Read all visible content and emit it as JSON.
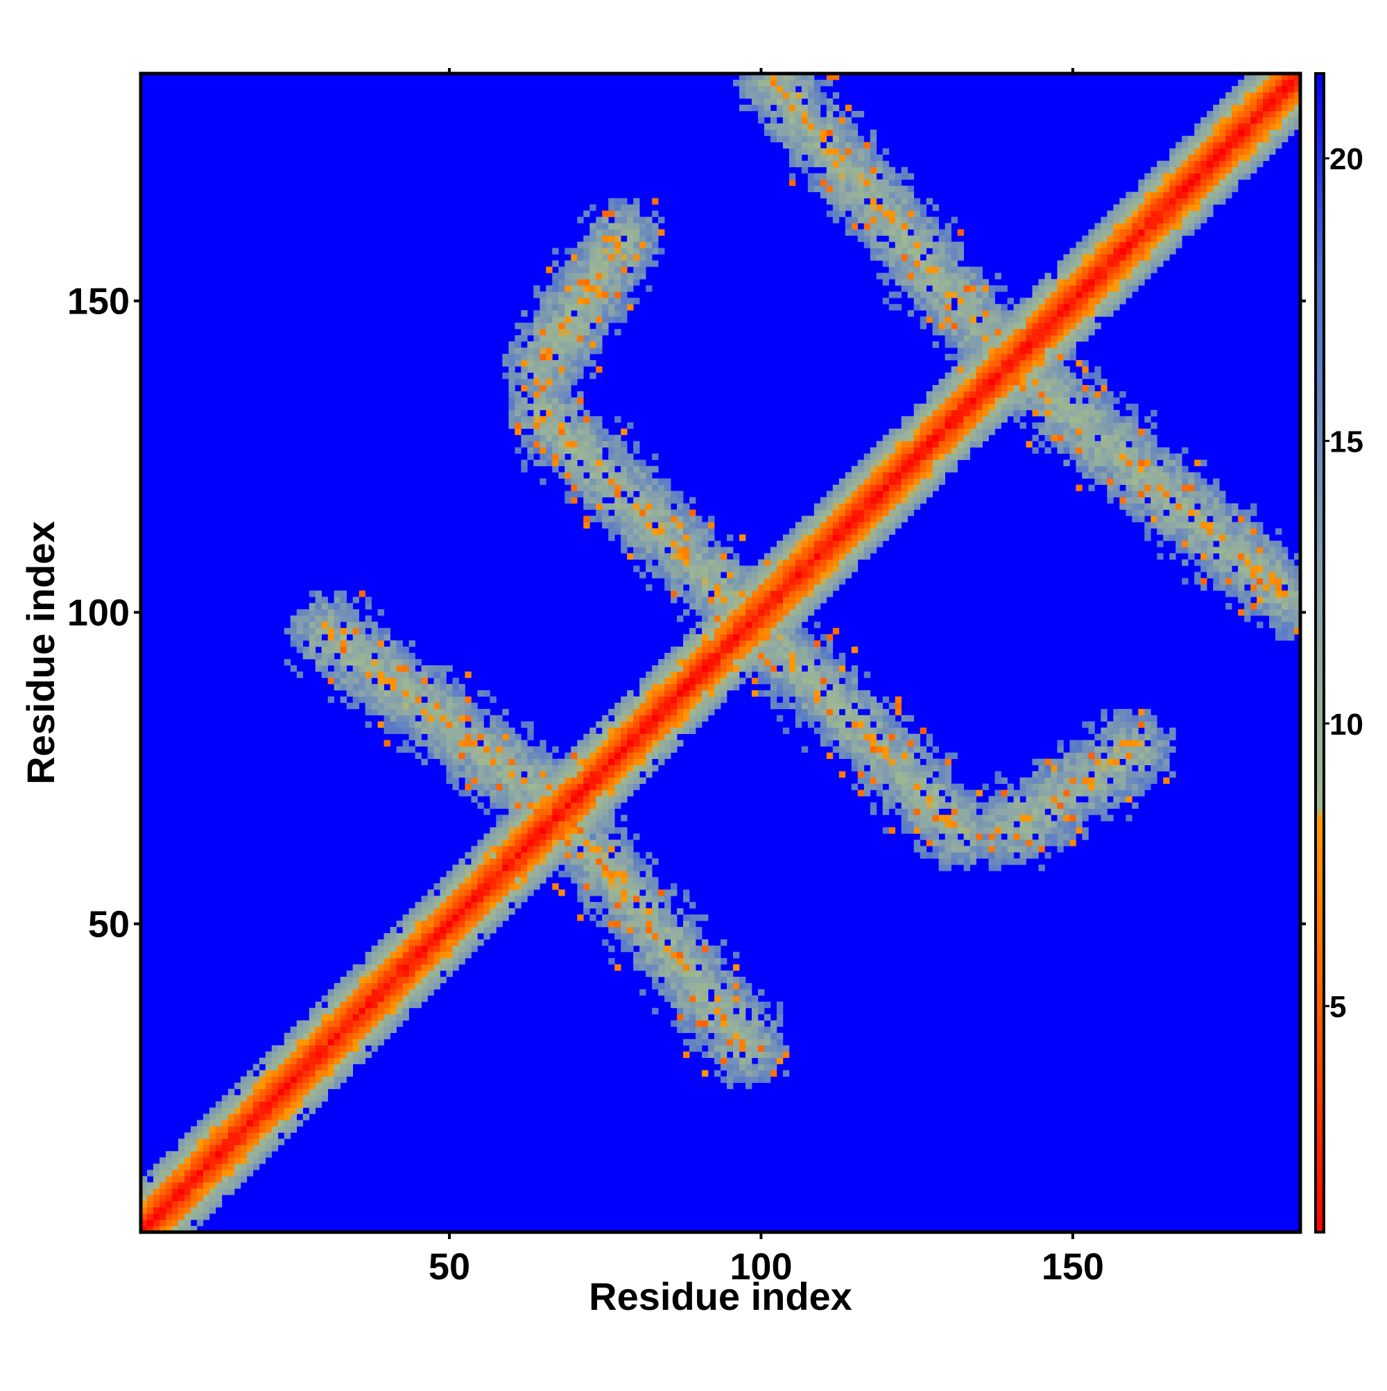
{
  "chart_data": {
    "type": "heatmap",
    "title": "",
    "xlabel": "Residue index",
    "ylabel": "Residue index",
    "n_residues": 186,
    "xlim": [
      1,
      186
    ],
    "ylim": [
      1,
      186
    ],
    "x_ticks": [
      50,
      100,
      150
    ],
    "y_ticks": [
      50,
      100,
      150
    ],
    "colorbar": {
      "ticks": [
        5,
        10,
        15,
        20
      ],
      "range": [
        1,
        21.5
      ],
      "colors": [
        {
          "value": 1,
          "color": "#ff0000"
        },
        {
          "value": 5,
          "color": "#ff6000"
        },
        {
          "value": 8.3,
          "color": "#ff9900"
        },
        {
          "value": 8.5,
          "color": "#9fb890"
        },
        {
          "value": 12,
          "color": "#8ba5a8"
        },
        {
          "value": 18,
          "color": "#4b6fd0"
        },
        {
          "value": 21.5,
          "color": "#0000ff"
        }
      ]
    },
    "background_value": 21.5,
    "contact_bands": [
      {
        "i_start": 1,
        "i_end": 186,
        "j_start": 1,
        "j_end": 186,
        "orientation": "diagonal",
        "mean_distance": 1.5,
        "width": 8
      },
      {
        "i_start": 30,
        "i_end": 68,
        "j_start": 97,
        "j_end": 68,
        "orientation": "anti",
        "mean_distance": 9
      },
      {
        "i_start": 68,
        "i_end": 98,
        "j_start": 68,
        "j_end": 30,
        "orientation": "anti",
        "mean_distance": 9
      },
      {
        "i_start": 65,
        "i_end": 97,
        "j_start": 132,
        "j_end": 100,
        "orientation": "anti",
        "mean_distance": 9
      },
      {
        "i_start": 65,
        "i_end": 78,
        "j_start": 140,
        "j_end": 160,
        "orientation": "parallel",
        "mean_distance": 9
      },
      {
        "i_start": 100,
        "i_end": 132,
        "j_start": 97,
        "j_end": 65,
        "orientation": "anti",
        "mean_distance": 9
      },
      {
        "i_start": 102,
        "i_end": 140,
        "j_start": 185,
        "j_end": 140,
        "orientation": "anti",
        "mean_distance": 9
      },
      {
        "i_start": 140,
        "i_end": 160,
        "j_start": 65,
        "j_end": 78,
        "orientation": "parallel",
        "mean_distance": 9
      },
      {
        "i_start": 140,
        "i_end": 185,
        "j_start": 140,
        "j_end": 102,
        "orientation": "anti",
        "mean_distance": 9
      }
    ]
  },
  "icons": {
    "colorbar": "colorbar-gradient"
  }
}
